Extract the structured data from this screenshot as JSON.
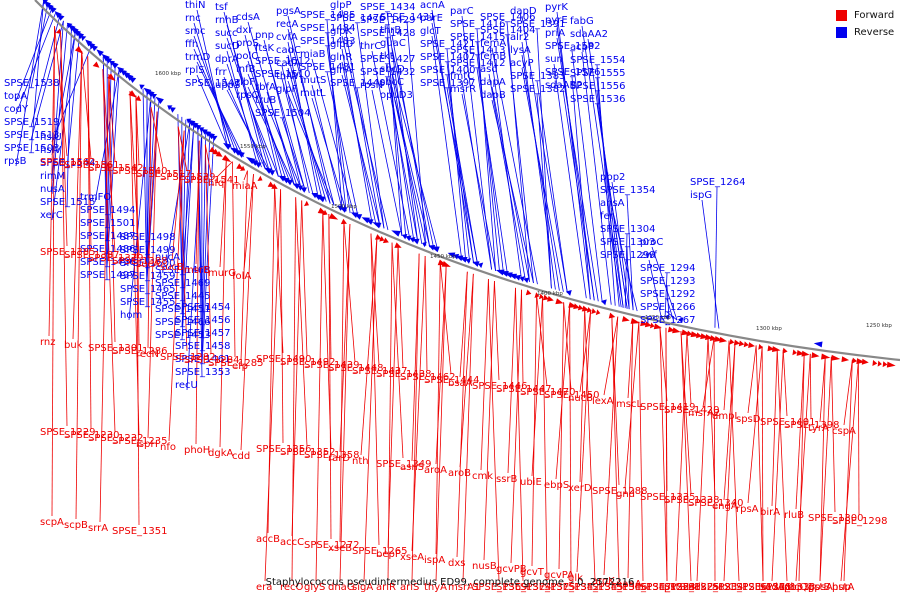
{
  "caption": "Staphylococcus pseudintermedius ED99, complete genome. - 0..2572216",
  "legend": [
    {
      "label": "Forward",
      "color": "#ee0000"
    },
    {
      "label": "Reverse",
      "color": "#0000ee"
    }
  ],
  "colors": {
    "forward": "#ee0000",
    "reverse": "#0000ee",
    "backbone": "#888888"
  },
  "ticks": [
    "1600 kbp",
    "1550 kbp",
    "1500 kbp",
    "1450 kbp",
    "1400 kbp",
    "1350 kbp",
    "1300 kbp",
    "1250 kbp"
  ],
  "reverse_labels": [
    "thiN",
    "rnc",
    "smc",
    "ffh",
    "trmD",
    "rplS",
    "SPSE_1543",
    "tsf",
    "rnhB",
    "succ",
    "sucD",
    "dprA",
    "frr",
    "uppS",
    "cdsA",
    "dxr",
    "proS",
    "polC",
    "infB",
    "ribF",
    "rpsO",
    "pnp",
    "ftsK",
    "SPSE_1512",
    "SPSE_1510",
    "rbfA",
    "truB",
    "SPSE_1504",
    "pgsA",
    "recA",
    "cvfA",
    "cadC",
    "cadA",
    "thiW",
    "glpF",
    "SPSE_1485",
    "SPSE_1484",
    "SPSE_1483",
    "miaB",
    "SPSE_1481",
    "mutS",
    "mutL",
    "glpP",
    "SPSE_1476",
    "glpK",
    "glpD",
    "glnR",
    "glnA",
    "SPSE_1440",
    "SPSE_1434",
    "SPSE_1429",
    "SPSE_1428",
    "thrC",
    "SPSE_1427",
    "SPSE_1432",
    "rpsN",
    "SPSE_1431",
    "thrB",
    "guaC",
    "tkt",
    "sbcD",
    "sbcC",
    "opuD3",
    "acnA",
    "parE",
    "glcT",
    "SPSE_1421",
    "SPSE_1407",
    "SPSE_1400",
    "SPSE_1397",
    "parC",
    "SPSE_1416",
    "SPSE_1415",
    "SPSE_1413",
    "SPSE_1412",
    "fmtC",
    "msrR",
    "SPSE_1406",
    "SPSE_1404",
    "femA",
    "femB",
    "asd",
    "dapA",
    "dapB",
    "dapD",
    "SPSE_1391",
    "alr2",
    "lysA",
    "acyP",
    "SPSE_1383",
    "SPSE_1382",
    "pyrK",
    "pyrE",
    "priA",
    "SPSE_1582",
    "sun",
    "SPSE_1576",
    "sdaAB2",
    "fabG",
    "sdaAA2",
    "acpP",
    "SPSE_1554",
    "SPSE_1555",
    "SPSE_1556",
    "SPSE_1536",
    "SPSE_1538",
    "topA",
    "codY",
    "SPSE_1519",
    "SPSE_1513",
    "SPSE_1503",
    "rpsB",
    "hslU",
    "hslV",
    "SPSE_1544",
    "rimM",
    "nusA",
    "SPSE_1515",
    "xerC",
    "trmFO",
    "SPSE_1494",
    "SPSE_1501",
    "SPSE_1487",
    "SPSE_1486",
    "SPSE_1496",
    "SPSE_1497",
    "SPSE_1498",
    "SPSE_1499",
    "SPSE_1500",
    "SPSE_1459",
    "SPSE_1465",
    "SPSE_1455",
    "hom",
    "nucA",
    "SPSE_1468",
    "SPSE_1469",
    "SPSE_1445",
    "SPSE_1451",
    "SPSE_1466",
    "SPSE_1453",
    "SPSE_1454",
    "SPSE_1456",
    "SPSE_1457",
    "SPSE_1458",
    "SPSE_1461",
    "SPSE_1353",
    "recU",
    "pbp2",
    "SPSE_1354",
    "ansA",
    "fer",
    "SPSE_1304",
    "SPSE_1303",
    "SPSE_1299",
    "proC",
    "zwf",
    "SPSE_1294",
    "SPSE_1293",
    "SPSE_1292",
    "SPSE_1266",
    "SPSE_1267",
    "SPSE_1264",
    "ispG"
  ],
  "forward_labels": [
    "SPSE_1562",
    "SPSE_1561",
    "SPSE_1542",
    "SPSE_1540",
    "SPSE_1517",
    "SPSE_1539",
    "SPSE_1541",
    "hfq",
    "miaA",
    "SPSE_1490",
    "SPSE_1492",
    "SPSE_1439",
    "SPSE_1448",
    "SPSE_1437",
    "SPSE_1438",
    "SPSE_1462",
    "SPSE_1444",
    "bsaA",
    "SPSE_1446",
    "SPSE_1447",
    "SPSE_1470",
    "SPSE_1450",
    "nucB",
    "lexA",
    "mscL",
    "SPSE_1419",
    "SPSE_1420",
    "msrA2",
    "dmpI",
    "spsD",
    "SPSE_1401",
    "SPSE_1398",
    "tyrA",
    "cspA",
    "SPSE_1385",
    "SPSE_1387",
    "SPSE_1379",
    "SPSE_1388",
    "sucA",
    "sucB",
    "msrB",
    "murG",
    "folA",
    "SPSE_1356",
    "SPSE_1352",
    "SPSE_1358",
    "rarD",
    "nth",
    "SPSE_1349",
    "asnS",
    "aroA",
    "aroB",
    "cmk",
    "ssrB",
    "ubiE",
    "ebpS",
    "xerD",
    "SPSE_1288",
    "gnd",
    "SPSE_1335",
    "SPSE_1338",
    "SPSE_1340",
    "engA",
    "rpsA",
    "birA",
    "rluB",
    "SPSE_1300",
    "SPSE_1298",
    "rnz",
    "buk",
    "SPSE_1301",
    "SPSE_1286",
    "recN",
    "SPSE_1282",
    "SPSE_1284",
    "SPSE_1285",
    "efp",
    "accB",
    "accC",
    "SPSE_1272",
    "xseB",
    "SPSE_1265",
    "bepP",
    "xseA",
    "ispA",
    "dxs",
    "nusB",
    "gcvPB",
    "gcvT",
    "gcvPA",
    "glk",
    "aroK",
    "nanA",
    "SPSE_1254",
    "pstS",
    "SPSE_1234",
    "SPSE_1236",
    "SPSE_1238",
    "sodA",
    "pbp3",
    "pstB",
    "pstA",
    "SPSE_1229",
    "SPSE_1230",
    "SPSE_1232",
    "SPSE_1235",
    "ispH",
    "nfo",
    "phoH",
    "dgkA",
    "cdd",
    "era",
    "recO",
    "glyS",
    "dnaG",
    "sigA",
    "arlR",
    "arlS",
    "thyA",
    "msrA1",
    "SPSE_1369",
    "SPSE_1374",
    "SPSE_1375",
    "SPSE_1342",
    "SPSE_1345",
    "SPSE_1346",
    "SPSE_1347",
    "SPSE_1323",
    "SPSE_1325",
    "ndk",
    "aroC",
    "SPSE_1311",
    "SPSE_1313",
    "recQ1",
    "gpsA",
    "hup",
    "scpA",
    "scpB",
    "srrA",
    "SPSE_1351"
  ]
}
